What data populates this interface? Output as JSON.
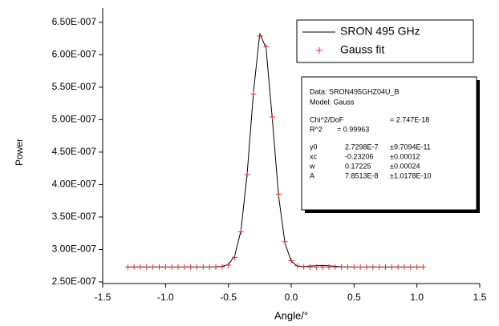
{
  "chart_data": {
    "type": "line",
    "xlabel": "Angle/°",
    "ylabel": "Power",
    "x": [
      -1.3,
      -1.25,
      -1.2,
      -1.15,
      -1.1,
      -1.05,
      -1.0,
      -0.95,
      -0.9,
      -0.85,
      -0.8,
      -0.75,
      -0.7,
      -0.65,
      -0.6,
      -0.55,
      -0.5,
      -0.45,
      -0.4,
      -0.35,
      -0.3,
      -0.25,
      -0.2,
      -0.15,
      -0.1,
      -0.05,
      0.0,
      0.05,
      0.1,
      0.15,
      0.2,
      0.25,
      0.3,
      0.35,
      0.4,
      0.45,
      0.5,
      0.55,
      0.6,
      0.65,
      0.7,
      0.75,
      0.8,
      0.85,
      0.9,
      0.95,
      1.0,
      1.05
    ],
    "series": [
      {
        "name": "SRON 495 GHz",
        "color": "#000000",
        "style": "line",
        "values": [
          2.729e-07,
          2.73e-07,
          2.731e-07,
          2.729e-07,
          2.73e-07,
          2.731e-07,
          2.729e-07,
          2.73e-07,
          2.73e-07,
          2.729e-07,
          2.731e-07,
          2.73e-07,
          2.729e-07,
          2.731e-07,
          2.733e-07,
          2.74e-07,
          2.77e-07,
          2.9e-07,
          3.29e-07,
          4.18e-07,
          5.43e-07,
          6.33e-07,
          6.1e-07,
          5e-07,
          3.82e-07,
          3.1e-07,
          2.82e-07,
          2.74e-07,
          2.738e-07,
          2.745e-07,
          2.75e-07,
          2.752e-07,
          2.748e-07,
          2.74e-07,
          2.734e-07,
          2.731e-07,
          2.729e-07,
          2.728e-07,
          2.73e-07,
          2.731e-07,
          2.73e-07,
          2.729e-07,
          2.73e-07,
          2.731e-07,
          2.73e-07,
          2.729e-07,
          2.73e-07,
          2.73e-07
        ]
      },
      {
        "name": "Gauss fit",
        "color": "#e03030",
        "style": "plus",
        "values": [
          2.73e-07,
          2.73e-07,
          2.73e-07,
          2.73e-07,
          2.73e-07,
          2.73e-07,
          2.73e-07,
          2.73e-07,
          2.73e-07,
          2.73e-07,
          2.73e-07,
          2.73e-07,
          2.73e-07,
          2.73e-07,
          2.73e-07,
          2.734e-07,
          2.759e-07,
          2.878e-07,
          3.272e-07,
          4.154e-07,
          5.395e-07,
          6.29e-07,
          6.123e-07,
          5.04e-07,
          3.852e-07,
          3.119e-07,
          2.826e-07,
          2.747e-07,
          2.732e-07,
          2.73e-07,
          2.73e-07,
          2.73e-07,
          2.73e-07,
          2.73e-07,
          2.73e-07,
          2.73e-07,
          2.73e-07,
          2.73e-07,
          2.73e-07,
          2.73e-07,
          2.73e-07,
          2.73e-07,
          2.73e-07,
          2.73e-07,
          2.73e-07,
          2.73e-07,
          2.73e-07,
          2.73e-07
        ]
      }
    ],
    "xlim": [
      -1.5,
      1.5
    ],
    "xticks": [
      -1.5,
      {
        "value": -1.0,
        "label": "-1.0"
      },
      -0.5,
      {
        "value": 0,
        "label": "0.0"
      },
      0.5,
      {
        "value": 1.0,
        "label": "1.0"
      },
      1.5
    ],
    "ylim": [
      2.475e-07,
      6.72e-07
    ],
    "yticks": [
      {
        "value": 2.5e-07,
        "label": "2.50E-007"
      },
      {
        "value": 3e-07,
        "label": "3.00E-007"
      },
      {
        "value": 3.5e-07,
        "label": "3.50E-007"
      },
      {
        "value": 4e-07,
        "label": "4.00E-007"
      },
      {
        "value": 4.5e-07,
        "label": "4.50E-007"
      },
      {
        "value": 5e-07,
        "label": "5.00E-007"
      },
      {
        "value": 5.5e-07,
        "label": "5.50E-007"
      },
      {
        "value": 6e-07,
        "label": "6.00E-007"
      },
      {
        "value": 6.5e-07,
        "label": "6.50E-007"
      }
    ],
    "annotation": {
      "data": "Data: SRON495GHZ04U_B",
      "model": "Model: Gauss",
      "chi": [
        "Chi^2/DoF",
        "= 2.747E-18"
      ],
      "r2": [
        "R^2",
        "= 0.99963"
      ],
      "params": [
        [
          "y0",
          "2.7298E-7",
          "±9.7094E-11"
        ],
        [
          "xc",
          "-0.23206",
          "±0.00012"
        ],
        [
          "w",
          "0.17225",
          "±0.00024"
        ],
        [
          "A",
          "7.8513E-8",
          "±1.0178E-10"
        ]
      ]
    }
  }
}
